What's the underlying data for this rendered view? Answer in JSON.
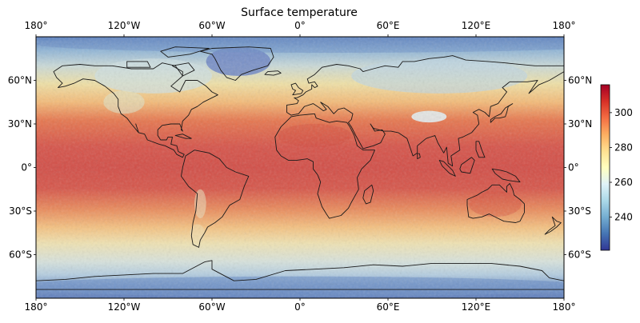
{
  "title": "Surface temperature",
  "map": {
    "projection": "plate-carree",
    "lon_range": [
      -180,
      180
    ],
    "lat_range": [
      -90,
      90
    ],
    "field": "surface temperature",
    "style": "shaded-relief overlay with coastlines",
    "lon_ticks": [
      "180°",
      "120°W",
      "60°W",
      "0°",
      "60°E",
      "120°E",
      "180°"
    ],
    "lat_ticks": [
      "60°N",
      "30°N",
      "0°",
      "30°S",
      "60°S"
    ],
    "lon_tick_values": [
      -180,
      -120,
      -60,
      0,
      60,
      120,
      180
    ],
    "lat_tick_values": [
      60,
      30,
      0,
      -30,
      -60
    ]
  },
  "colorbar": {
    "colormap": "RdYlBu_r",
    "range": [
      221,
      316
    ],
    "ticks": [
      "240",
      "260",
      "280",
      "300"
    ],
    "tick_values": [
      240,
      260,
      280,
      300
    ],
    "placement": "right",
    "colors": [
      "#313695",
      "#4575b4",
      "#74add1",
      "#abd9e9",
      "#e0f3f8",
      "#ffffbf",
      "#fee090",
      "#fdae61",
      "#f46d43",
      "#d73027",
      "#a50026"
    ]
  }
}
